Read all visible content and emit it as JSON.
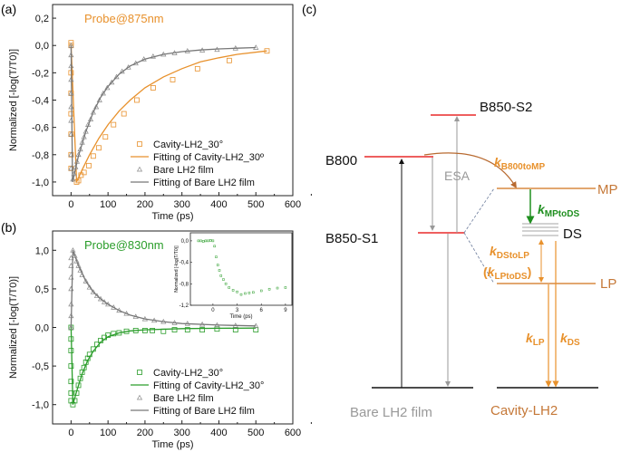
{
  "panel_labels": {
    "a": "(a)",
    "b": "(b)",
    "c": "(c)"
  },
  "colors": {
    "orange": "#e8912c",
    "green": "#2a9d2a",
    "gray": "#888888",
    "red": "#e82a2a",
    "brown": "#c57838",
    "dark": "#111111"
  },
  "chart_data": [
    {
      "type": "scatter",
      "panel": "(a)",
      "annotation": "Probe@875nm",
      "xlabel": "Time (ps)",
      "ylabel": "Normalized [-log(T/T0)]",
      "xlim": [
        -50,
        600
      ],
      "ylim": [
        -1.1,
        0.3
      ],
      "xticks": [
        "0",
        "100",
        "200",
        "300",
        "400",
        "500",
        "600"
      ],
      "xtick_values": [
        0,
        100,
        200,
        300,
        400,
        500,
        600
      ],
      "yticks": [
        "0,2",
        "0,0",
        "-0,2",
        "-0,4",
        "-0,6",
        "-0,8",
        "-1,0"
      ],
      "ytick_values": [
        0.2,
        0.0,
        -0.2,
        -0.4,
        -0.6,
        -0.8,
        -1.0
      ],
      "legend_placement": "bottom-right",
      "series": [
        {
          "name": "Cavity-LH2_30°",
          "marker": "square",
          "color": "#e8912c",
          "x": [
            0,
            0,
            0,
            0,
            0,
            0,
            0,
            0,
            15,
            20,
            27,
            35,
            48,
            60,
            75,
            93,
            115,
            143,
            178,
            222,
            275,
            342,
            428,
            530
          ],
          "y": [
            0.02,
            0,
            -0.2,
            -0.35,
            -0.5,
            -0.65,
            -0.8,
            -0.9,
            -1.0,
            -0.99,
            -0.95,
            -0.93,
            -0.88,
            -0.81,
            -0.75,
            -0.67,
            -0.58,
            -0.5,
            -0.4,
            -0.31,
            -0.25,
            -0.17,
            -0.11,
            -0.04
          ]
        },
        {
          "name": "Fitting of Cavity-LH2_30º",
          "marker": "line",
          "color": "#e8912c",
          "x": [
            0,
            15,
            30,
            50,
            75,
            100,
            130,
            160,
            200,
            250,
            300,
            350,
            400,
            450,
            530
          ],
          "y": [
            0,
            -1.0,
            -0.91,
            -0.8,
            -0.68,
            -0.58,
            -0.48,
            -0.4,
            -0.31,
            -0.23,
            -0.17,
            -0.12,
            -0.09,
            -0.065,
            -0.04
          ]
        },
        {
          "name": "Bare LH2 film",
          "marker": "triangle",
          "color": "#888888",
          "x": [
            0,
            0,
            0,
            0,
            0,
            0,
            0,
            0,
            0,
            0,
            5,
            8,
            12,
            16,
            20,
            25,
            30,
            35,
            40,
            46,
            53,
            60,
            68,
            77,
            87,
            98,
            110,
            123,
            138,
            155,
            175,
            197,
            222,
            250,
            280,
            315,
            355,
            395,
            445,
            500
          ],
          "y": [
            0,
            -0.07,
            -0.15,
            -0.25,
            -0.35,
            -0.45,
            -0.55,
            -0.65,
            -0.8,
            -0.9,
            -0.98,
            -0.94,
            -0.89,
            -0.85,
            -0.8,
            -0.76,
            -0.71,
            -0.67,
            -0.63,
            -0.58,
            -0.54,
            -0.49,
            -0.45,
            -0.4,
            -0.35,
            -0.31,
            -0.27,
            -0.23,
            -0.19,
            -0.16,
            -0.13,
            -0.1,
            -0.08,
            -0.065,
            -0.055,
            -0.04,
            -0.035,
            -0.03,
            -0.02,
            -0.015
          ]
        },
        {
          "name": "Fitting of Bare LH2 film",
          "marker": "line",
          "color": "#777777",
          "x": [
            0,
            4,
            20,
            40,
            60,
            80,
            100,
            130,
            160,
            200,
            250,
            300,
            350,
            400,
            450,
            500
          ],
          "y": [
            0,
            -1.0,
            -0.81,
            -0.63,
            -0.49,
            -0.38,
            -0.3,
            -0.21,
            -0.15,
            -0.1,
            -0.065,
            -0.045,
            -0.033,
            -0.025,
            -0.02,
            -0.015
          ]
        }
      ]
    },
    {
      "type": "scatter",
      "panel": "(b)",
      "annotation": "Probe@830nm",
      "xlabel": "Time (ps)",
      "ylabel": "Normalized [-log(T/T0)]",
      "xlim": [
        -50,
        600
      ],
      "ylim": [
        -1.25,
        1.25
      ],
      "xticks": [
        "0",
        "100",
        "200",
        "300",
        "400",
        "500",
        "600"
      ],
      "xtick_values": [
        0,
        100,
        200,
        300,
        400,
        500,
        600
      ],
      "yticks": [
        "1,0",
        "0,5",
        "0,0",
        "-0,5",
        "-1,0"
      ],
      "ytick_values": [
        1.0,
        0.5,
        0.0,
        -0.5,
        -1.0
      ],
      "legend_placement": "bottom-right",
      "series": [
        {
          "name": "Cavity-LH2_30°",
          "marker": "square",
          "color": "#2a9d2a",
          "x": [
            0,
            0,
            0,
            0,
            0,
            0,
            0,
            5,
            10,
            15,
            20,
            25,
            30,
            35,
            40,
            45,
            50,
            60,
            70,
            80,
            90,
            100,
            115,
            130,
            150,
            175,
            200,
            220,
            250,
            280,
            315,
            355,
            395,
            445,
            500
          ],
          "y": [
            0,
            -0.15,
            -0.3,
            -0.5,
            -0.7,
            -0.85,
            -0.95,
            -1.0,
            -0.95,
            -0.85,
            -0.75,
            -0.66,
            -0.58,
            -0.52,
            -0.45,
            -0.4,
            -0.35,
            -0.28,
            -0.22,
            -0.17,
            -0.13,
            -0.1,
            -0.08,
            -0.07,
            -0.05,
            -0.04,
            -0.04,
            -0.04,
            -0.05,
            -0.03,
            -0.03,
            -0.03,
            -0.02,
            -0.03,
            -0.03
          ]
        },
        {
          "name": "Fitting of Cavity-LH2_30°",
          "marker": "line",
          "color": "#2a9d2a",
          "x": [
            0,
            5,
            15,
            30,
            45,
            60,
            80,
            100,
            130,
            160,
            200,
            300,
            400,
            500
          ],
          "y": [
            0,
            -1.0,
            -0.83,
            -0.6,
            -0.43,
            -0.31,
            -0.19,
            -0.12,
            -0.07,
            -0.045,
            -0.03,
            -0.015,
            -0.01,
            -0.008
          ]
        },
        {
          "name": "Bare LH2 film",
          "marker": "triangle",
          "color": "#888888",
          "x": [
            0,
            0,
            0,
            0,
            0,
            0,
            0,
            5,
            10,
            15,
            20,
            25,
            30,
            40,
            50,
            60,
            70,
            80,
            90,
            100,
            115,
            130,
            150,
            175,
            200,
            225,
            250,
            280,
            315,
            355,
            395,
            445,
            500
          ],
          "y": [
            0,
            0.15,
            0.3,
            0.5,
            0.65,
            0.8,
            0.9,
            1.0,
            0.93,
            0.86,
            0.8,
            0.74,
            0.68,
            0.6,
            0.52,
            0.46,
            0.41,
            0.37,
            0.33,
            0.3,
            0.26,
            0.22,
            0.18,
            0.14,
            0.11,
            0.09,
            0.075,
            0.06,
            0.05,
            0.04,
            0.03,
            0.025,
            0.02
          ]
        },
        {
          "name": "Fitting of Bare LH2 film",
          "marker": "line",
          "color": "#777777",
          "x": [
            0,
            5,
            20,
            40,
            60,
            80,
            100,
            130,
            160,
            200,
            250,
            300,
            400,
            500
          ],
          "y": [
            0,
            1.0,
            0.8,
            0.6,
            0.46,
            0.37,
            0.3,
            0.22,
            0.16,
            0.11,
            0.075,
            0.05,
            0.03,
            0.02
          ]
        }
      ],
      "inset": {
        "xlabel": "Time (ps)",
        "ylabel": "Normalized [-log(T/T0)]",
        "xlim": [
          -2.8,
          9.8
        ],
        "ylim": [
          -1.2,
          0.15
        ],
        "xticks": [
          "0",
          "3",
          "6",
          "9"
        ],
        "xtick_values": [
          0,
          3,
          6,
          9
        ],
        "yticks": [
          "0,0",
          "-0,4",
          "-0,8",
          "-1,2"
        ],
        "ytick_values": [
          0,
          -0.4,
          -0.8,
          -1.2
        ],
        "series": [
          {
            "marker": "square",
            "color": "#2a9d2a",
            "x": [
              -1.8,
              -1.5,
              -1.2,
              -0.9,
              -0.6,
              -0.3,
              0,
              0.2,
              0.4,
              0.6,
              0.8,
              1,
              1.3,
              1.6,
              2,
              2.5,
              3,
              3.5,
              4,
              4.5,
              5,
              6,
              7,
              8,
              9
            ],
            "y": [
              0,
              0,
              -0.01,
              0,
              0,
              0.01,
              0,
              -0.1,
              -0.3,
              -0.45,
              -0.55,
              -0.65,
              -0.72,
              -0.8,
              -0.87,
              -0.92,
              -0.95,
              -1.0,
              -0.98,
              -0.97,
              -0.96,
              -0.93,
              -0.9,
              -0.88,
              -0.87
            ]
          }
        ]
      }
    }
  ],
  "diagram": {
    "levels": {
      "b850_s2": "B850-S2",
      "b800": "B800",
      "b850_s1": "B850-S1",
      "mp": "MP",
      "ds": "DS",
      "lp": "LP"
    },
    "esa": "ESA",
    "rates": {
      "b800_to_mp": {
        "k": "k",
        "sub": "B800toMP"
      },
      "mp_to_ds": {
        "k": "k",
        "sub": "MPtoDS"
      },
      "ds_to_lp": {
        "k": "k",
        "sub": "DStoLP"
      },
      "lp_to_ds": {
        "open": "(",
        "k": "k",
        "sub": "LPtoDS",
        "close": ")"
      },
      "lp": {
        "k": "k",
        "sub": "LP"
      },
      "ds": {
        "k": "k",
        "sub": "DS"
      }
    },
    "system_labels": {
      "bare": "Bare LH2 film",
      "cavity": "Cavity-LH2"
    }
  }
}
